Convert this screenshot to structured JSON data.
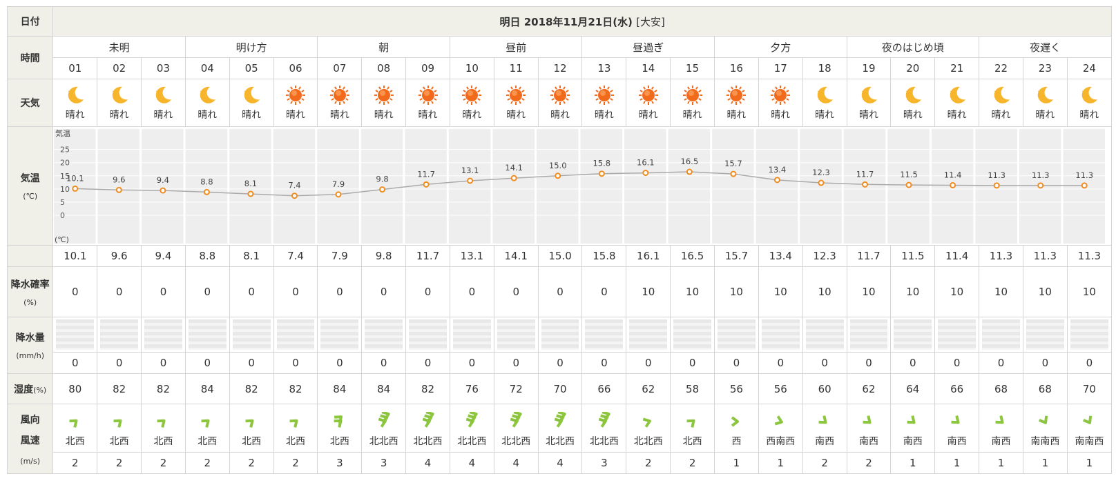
{
  "header": {
    "row_label": "日付",
    "date_title": "明日 2018年11月21日(水)",
    "rokuyo": "[大安]"
  },
  "labels": {
    "time": "時間",
    "weather": "天気",
    "temp": "気温",
    "temp_unit": "(℃)",
    "precip_prob": "降水確率",
    "precip_prob_unit": "(%)",
    "precip_amount": "降水量",
    "precip_amount_unit": "(mm/h)",
    "humidity": "湿度",
    "humidity_unit": "(%)",
    "wind_dir": "風向",
    "wind_speed": "風速",
    "wind_unit": "(m/s)"
  },
  "periods": [
    "未明",
    "明け方",
    "朝",
    "昼前",
    "昼過ぎ",
    "夕方",
    "夜のはじめ頃",
    "夜遅く"
  ],
  "hours": [
    "01",
    "02",
    "03",
    "04",
    "05",
    "06",
    "07",
    "08",
    "09",
    "10",
    "11",
    "12",
    "13",
    "14",
    "15",
    "16",
    "17",
    "18",
    "19",
    "20",
    "21",
    "22",
    "23",
    "24"
  ],
  "weather": [
    {
      "icon": "moon-icon",
      "label": "晴れ"
    },
    {
      "icon": "moon-icon",
      "label": "晴れ"
    },
    {
      "icon": "moon-icon",
      "label": "晴れ"
    },
    {
      "icon": "moon-icon",
      "label": "晴れ"
    },
    {
      "icon": "moon-icon",
      "label": "晴れ"
    },
    {
      "icon": "sun-icon",
      "label": "晴れ"
    },
    {
      "icon": "sun-icon",
      "label": "晴れ"
    },
    {
      "icon": "sun-icon",
      "label": "晴れ"
    },
    {
      "icon": "sun-icon",
      "label": "晴れ"
    },
    {
      "icon": "sun-icon",
      "label": "晴れ"
    },
    {
      "icon": "sun-icon",
      "label": "晴れ"
    },
    {
      "icon": "sun-icon",
      "label": "晴れ"
    },
    {
      "icon": "sun-icon",
      "label": "晴れ"
    },
    {
      "icon": "sun-icon",
      "label": "晴れ"
    },
    {
      "icon": "sun-icon",
      "label": "晴れ"
    },
    {
      "icon": "sun-icon",
      "label": "晴れ"
    },
    {
      "icon": "sun-icon",
      "label": "晴れ"
    },
    {
      "icon": "moon-icon",
      "label": "晴れ"
    },
    {
      "icon": "moon-icon",
      "label": "晴れ"
    },
    {
      "icon": "moon-icon",
      "label": "晴れ"
    },
    {
      "icon": "moon-icon",
      "label": "晴れ"
    },
    {
      "icon": "moon-icon",
      "label": "晴れ"
    },
    {
      "icon": "moon-icon",
      "label": "晴れ"
    },
    {
      "icon": "moon-icon",
      "label": "晴れ"
    }
  ],
  "temps": [
    "10.1",
    "9.6",
    "9.4",
    "8.8",
    "8.1",
    "7.4",
    "7.9",
    "9.8",
    "11.7",
    "13.1",
    "14.1",
    "15.0",
    "15.8",
    "16.1",
    "16.5",
    "15.7",
    "13.4",
    "12.3",
    "11.7",
    "11.5",
    "11.4",
    "11.3",
    "11.3",
    "11.3"
  ],
  "precip_prob": [
    "0",
    "0",
    "0",
    "0",
    "0",
    "0",
    "0",
    "0",
    "0",
    "0",
    "0",
    "0",
    "0",
    "10",
    "10",
    "10",
    "10",
    "10",
    "10",
    "10",
    "10",
    "10",
    "10",
    "10"
  ],
  "precip_amount": [
    "0",
    "0",
    "0",
    "0",
    "0",
    "0",
    "0",
    "0",
    "0",
    "0",
    "0",
    "0",
    "0",
    "0",
    "0",
    "0",
    "0",
    "0",
    "0",
    "0",
    "0",
    "0",
    "0",
    "0"
  ],
  "humidity": [
    "80",
    "82",
    "82",
    "84",
    "82",
    "82",
    "84",
    "84",
    "82",
    "76",
    "72",
    "70",
    "66",
    "62",
    "58",
    "56",
    "56",
    "60",
    "62",
    "64",
    "66",
    "68",
    "68",
    "70"
  ],
  "wind": [
    {
      "dir": "北西",
      "speed": "2",
      "level": 1
    },
    {
      "dir": "北西",
      "speed": "2",
      "level": 1
    },
    {
      "dir": "北西",
      "speed": "2",
      "level": 1
    },
    {
      "dir": "北西",
      "speed": "2",
      "level": 1
    },
    {
      "dir": "北西",
      "speed": "2",
      "level": 1
    },
    {
      "dir": "北西",
      "speed": "2",
      "level": 1
    },
    {
      "dir": "北西",
      "speed": "3",
      "level": 2
    },
    {
      "dir": "北北西",
      "speed": "3",
      "level": 3
    },
    {
      "dir": "北北西",
      "speed": "4",
      "level": 3
    },
    {
      "dir": "北北西",
      "speed": "4",
      "level": 3
    },
    {
      "dir": "北北西",
      "speed": "4",
      "level": 3
    },
    {
      "dir": "北北西",
      "speed": "4",
      "level": 3
    },
    {
      "dir": "北北西",
      "speed": "3",
      "level": 3
    },
    {
      "dir": "北北西",
      "speed": "2",
      "level": 1
    },
    {
      "dir": "北西",
      "speed": "2",
      "level": 1
    },
    {
      "dir": "西",
      "speed": "1",
      "level": 1
    },
    {
      "dir": "西南西",
      "speed": "1",
      "level": 1
    },
    {
      "dir": "南西",
      "speed": "2",
      "level": 1
    },
    {
      "dir": "南西",
      "speed": "2",
      "level": 1
    },
    {
      "dir": "南西",
      "speed": "1",
      "level": 1
    },
    {
      "dir": "南西",
      "speed": "1",
      "level": 1
    },
    {
      "dir": "南西",
      "speed": "1",
      "level": 1
    },
    {
      "dir": "南南西",
      "speed": "1",
      "level": 1
    },
    {
      "dir": "南南西",
      "speed": "1",
      "level": 1
    }
  ],
  "chart_data": {
    "type": "line",
    "title": "気温",
    "ylabel": "(℃)",
    "y_ticks": [
      "25",
      "20",
      "15",
      "10",
      "5",
      "0"
    ],
    "ylim": [
      -5,
      27
    ],
    "x": [
      "01",
      "02",
      "03",
      "04",
      "05",
      "06",
      "07",
      "08",
      "09",
      "10",
      "11",
      "12",
      "13",
      "14",
      "15",
      "16",
      "17",
      "18",
      "19",
      "20",
      "21",
      "22",
      "23",
      "24"
    ],
    "values": [
      10.1,
      9.6,
      9.4,
      8.8,
      8.1,
      7.4,
      7.9,
      9.8,
      11.7,
      13.1,
      14.1,
      15.0,
      15.8,
      16.1,
      16.5,
      15.7,
      13.4,
      12.3,
      11.7,
      11.5,
      11.4,
      11.3,
      11.3,
      11.3
    ],
    "grid": true,
    "colors": {
      "line": "#aaaaaa",
      "marker": "#f08c1e",
      "background": "#eeeeee"
    }
  },
  "colors": {
    "header_bg": "#f0f0e8",
    "border": "#d4d4d4",
    "sun": "#f26a1b",
    "moon": "#f7b52c",
    "wind": "#8cc63f"
  }
}
